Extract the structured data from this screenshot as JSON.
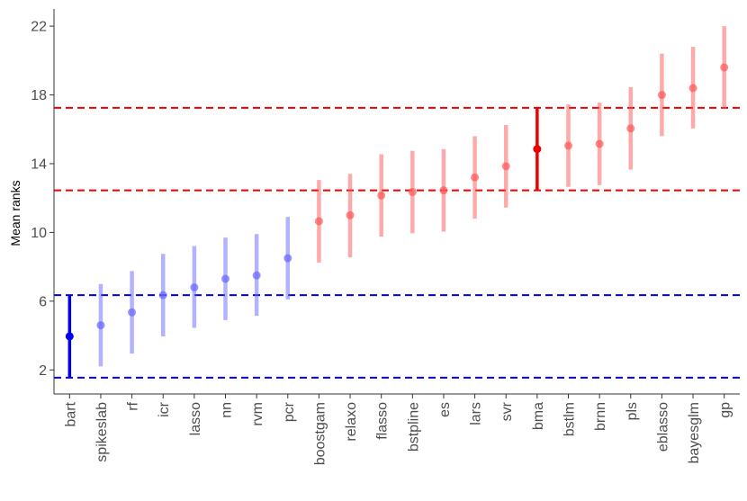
{
  "chart_data": {
    "type": "scatter",
    "subtype": "point-with-interval",
    "title": "",
    "xlabel": "",
    "ylabel": "Mean ranks",
    "ylim": [
      0.6,
      23.0
    ],
    "yticks": [
      2,
      6,
      10,
      14,
      18,
      22
    ],
    "grid": false,
    "legend": "none",
    "categories": [
      "bart",
      "spikeslab",
      "rf",
      "icr",
      "lasso",
      "nn",
      "rvm",
      "pcr",
      "boostgam",
      "relaxo",
      "flasso",
      "bstpline",
      "es",
      "lars",
      "svr",
      "bma",
      "bstlm",
      "brnn",
      "pls",
      "eblasso",
      "bayesglm",
      "gp"
    ],
    "mean": [
      3.95,
      4.6,
      5.35,
      6.35,
      6.8,
      7.3,
      7.5,
      8.5,
      10.65,
      11.0,
      12.15,
      12.35,
      12.45,
      13.2,
      13.85,
      14.85,
      15.05,
      15.15,
      16.05,
      18.0,
      18.4,
      19.6
    ],
    "lower": [
      1.55,
      2.2,
      2.95,
      3.95,
      4.45,
      4.9,
      5.15,
      6.1,
      8.25,
      8.55,
      9.75,
      9.95,
      10.05,
      10.8,
      11.45,
      12.45,
      12.65,
      12.75,
      13.65,
      15.6,
      16.05,
      17.2
    ],
    "upper": [
      6.35,
      7.0,
      7.75,
      8.75,
      9.2,
      9.7,
      9.9,
      10.9,
      13.05,
      13.4,
      14.55,
      14.75,
      14.85,
      15.6,
      16.25,
      17.25,
      17.45,
      17.55,
      18.45,
      20.4,
      20.8,
      22.0
    ],
    "group": [
      "best",
      "low",
      "low",
      "low",
      "low",
      "low",
      "low",
      "low",
      "high",
      "high",
      "high",
      "high",
      "high",
      "high",
      "high",
      "ref",
      "high",
      "high",
      "high",
      "high",
      "high",
      "high"
    ],
    "reference_lines": [
      {
        "y": 1.55,
        "color": "#0000ee"
      },
      {
        "y": 6.35,
        "color": "#0000ee"
      },
      {
        "y": 12.45,
        "color": "#ee0000"
      },
      {
        "y": 17.25,
        "color": "#ee0000"
      }
    ],
    "colors": {
      "best": "#0000ee",
      "low": "#6666ff",
      "ref": "#ee0000",
      "high": "#ff5555",
      "axis": "#333333",
      "tick_text": "#4d4d4d"
    }
  }
}
